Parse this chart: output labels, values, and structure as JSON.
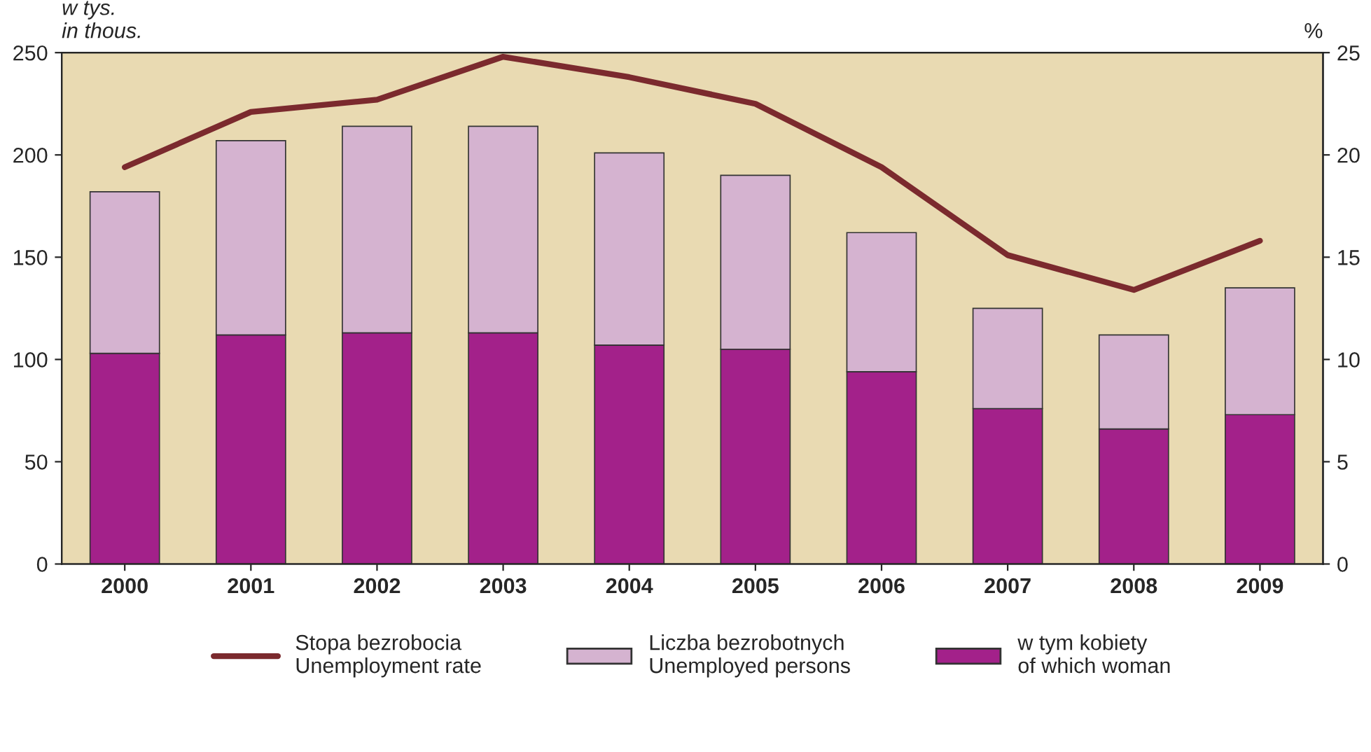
{
  "chart_data": {
    "type": "bar",
    "stacked": true,
    "categories": [
      "2000",
      "2001",
      "2002",
      "2003",
      "2004",
      "2005",
      "2006",
      "2007",
      "2008",
      "2009"
    ],
    "ylabel": "w tys.\nin thous.",
    "y2label": "%",
    "series": [
      {
        "name": "w tym kobiety\nof which woman",
        "color": "#a3218a",
        "values": [
          103,
          112,
          113,
          113,
          107,
          105,
          94,
          76,
          66,
          73
        ]
      },
      {
        "name": "Liczba bezrobotnych\nUnemployed persons",
        "color": "#d5b3d0",
        "values": [
          79,
          95,
          101,
          101,
          94,
          85,
          68,
          49,
          46,
          62
        ]
      },
      {
        "name": "Stopa bezrobocia\nUnemployment rate",
        "type": "line",
        "axis": "y2",
        "color": "#7b2a2e",
        "values": [
          19.4,
          22.1,
          22.7,
          24.8,
          23.8,
          22.5,
          19.4,
          15.1,
          13.4,
          15.8
        ]
      }
    ],
    "ylim": [
      0,
      250
    ],
    "yticks": [
      0,
      50,
      100,
      150,
      200,
      250
    ],
    "y2lim": [
      0,
      25
    ],
    "y2ticks": [
      0,
      5,
      10,
      15,
      20,
      25
    ],
    "grid": false,
    "legend": "bottom",
    "marker": "none",
    "line_style": "solid"
  }
}
